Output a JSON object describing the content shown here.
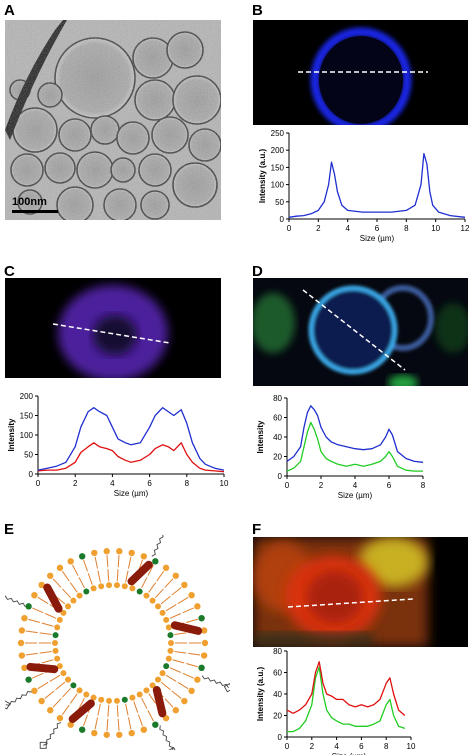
{
  "panels": {
    "a": {
      "letter": "A",
      "scalebar_label": "100nm"
    },
    "b": {
      "letter": "B"
    },
    "c": {
      "letter": "C"
    },
    "d": {
      "letter": "D"
    },
    "e": {
      "letter": "E"
    },
    "f": {
      "letter": "F"
    }
  },
  "colors": {
    "blue": "#1f2fd0",
    "red": "#e01010",
    "green": "#22cc22",
    "lipid_head": "#f0a030",
    "lipid_tail": "#e08030",
    "peptide": "#8a1a0a",
    "green_head": "#1a7a2a"
  },
  "chart_data": [
    {
      "id": "b",
      "type": "line",
      "xlabel": "Size (µm)",
      "ylabel": "Intensity (a.u.)",
      "xlim": [
        0,
        12
      ],
      "ylim": [
        0,
        250
      ],
      "xticks": [
        0,
        2,
        4,
        6,
        8,
        10,
        12
      ],
      "yticks": [
        0,
        50,
        100,
        150,
        200,
        250
      ],
      "series": [
        {
          "color": "blue",
          "x": [
            0,
            0.5,
            1,
            1.5,
            2,
            2.4,
            2.7,
            2.9,
            3.1,
            3.3,
            3.6,
            4,
            5,
            6,
            7,
            8,
            8.6,
            9,
            9.2,
            9.4,
            9.6,
            9.8,
            10.2,
            11,
            12
          ],
          "y": [
            5,
            8,
            10,
            15,
            25,
            50,
            100,
            165,
            130,
            80,
            40,
            25,
            20,
            20,
            20,
            25,
            40,
            100,
            190,
            160,
            80,
            40,
            20,
            10,
            5
          ]
        }
      ]
    },
    {
      "id": "c",
      "type": "line",
      "xlabel": "Size (µm)",
      "ylabel": "Intensity",
      "xlim": [
        0,
        10
      ],
      "ylim": [
        0,
        200
      ],
      "xticks": [
        0,
        2,
        4,
        6,
        8,
        10
      ],
      "yticks": [
        0,
        50,
        100,
        150,
        200
      ],
      "series": [
        {
          "color": "blue",
          "x": [
            0,
            0.5,
            1,
            1.5,
            2,
            2.3,
            2.7,
            3,
            3.3,
            3.7,
            4,
            4.3,
            4.7,
            5,
            5.5,
            6,
            6.3,
            6.7,
            7,
            7.3,
            7.7,
            8,
            8.3,
            8.7,
            9,
            9.5,
            10
          ],
          "y": [
            10,
            15,
            20,
            30,
            70,
            120,
            160,
            170,
            160,
            150,
            120,
            90,
            80,
            75,
            80,
            120,
            150,
            170,
            160,
            150,
            165,
            130,
            80,
            40,
            25,
            15,
            10
          ]
        },
        {
          "color": "red",
          "x": [
            0,
            0.5,
            1,
            1.5,
            2,
            2.3,
            2.7,
            3,
            3.3,
            3.7,
            4,
            4.3,
            4.7,
            5,
            5.5,
            6,
            6.3,
            6.7,
            7,
            7.3,
            7.7,
            8,
            8.3,
            8.7,
            9,
            9.5,
            10
          ],
          "y": [
            8,
            10,
            10,
            15,
            30,
            55,
            70,
            80,
            70,
            65,
            60,
            45,
            35,
            30,
            35,
            50,
            65,
            75,
            70,
            60,
            80,
            50,
            30,
            15,
            10,
            8,
            6
          ]
        }
      ]
    },
    {
      "id": "d",
      "type": "line",
      "xlabel": "Size (µm)",
      "ylabel": "Intensity",
      "xlim": [
        0,
        8
      ],
      "ylim": [
        0,
        80
      ],
      "xticks": [
        0,
        2,
        4,
        6,
        8
      ],
      "yticks": [
        0,
        20,
        40,
        60,
        80
      ],
      "series": [
        {
          "color": "blue",
          "x": [
            0,
            0.4,
            0.8,
            1,
            1.2,
            1.4,
            1.6,
            1.8,
            2,
            2.3,
            2.6,
            3,
            3.5,
            4,
            4.5,
            5,
            5.5,
            5.8,
            6,
            6.2,
            6.5,
            7,
            7.5,
            8
          ],
          "y": [
            15,
            20,
            30,
            50,
            65,
            72,
            68,
            62,
            50,
            40,
            35,
            32,
            30,
            28,
            27,
            28,
            32,
            40,
            48,
            42,
            25,
            18,
            15,
            14
          ]
        },
        {
          "color": "green",
          "x": [
            0,
            0.4,
            0.8,
            1,
            1.2,
            1.4,
            1.6,
            1.8,
            2,
            2.3,
            2.6,
            3,
            3.5,
            4,
            4.5,
            5,
            5.5,
            5.8,
            6,
            6.2,
            6.5,
            7,
            7.5,
            8
          ],
          "y": [
            5,
            8,
            15,
            30,
            45,
            55,
            48,
            38,
            25,
            18,
            15,
            12,
            10,
            12,
            10,
            12,
            15,
            20,
            25,
            20,
            10,
            6,
            5,
            5
          ]
        }
      ]
    },
    {
      "id": "f",
      "type": "line",
      "xlabel": "Size (µm)",
      "ylabel": "Intensity (a.u.)",
      "xlim": [
        0,
        10
      ],
      "ylim": [
        0,
        80
      ],
      "xticks": [
        0,
        2,
        4,
        6,
        8,
        10
      ],
      "yticks": [
        0,
        20,
        40,
        60,
        80
      ],
      "series": [
        {
          "color": "red",
          "x": [
            0,
            0.5,
            1,
            1.5,
            2,
            2.3,
            2.6,
            2.9,
            3.2,
            3.6,
            4,
            4.5,
            5,
            5.5,
            6,
            6.5,
            7,
            7.5,
            8,
            8.3,
            8.6,
            9,
            9.5
          ],
          "y": [
            25,
            22,
            25,
            30,
            40,
            60,
            70,
            50,
            40,
            38,
            35,
            35,
            30,
            28,
            30,
            28,
            30,
            35,
            50,
            55,
            40,
            25,
            20
          ]
        },
        {
          "color": "green",
          "x": [
            0,
            0.5,
            1,
            1.5,
            2,
            2.3,
            2.6,
            2.9,
            3.2,
            3.6,
            4,
            4.5,
            5,
            5.5,
            6,
            6.5,
            7,
            7.5,
            8,
            8.3,
            8.6,
            9,
            9.5
          ],
          "y": [
            5,
            5,
            8,
            15,
            30,
            55,
            65,
            40,
            25,
            18,
            15,
            12,
            12,
            10,
            10,
            10,
            12,
            15,
            30,
            35,
            20,
            10,
            8
          ]
        }
      ]
    }
  ]
}
